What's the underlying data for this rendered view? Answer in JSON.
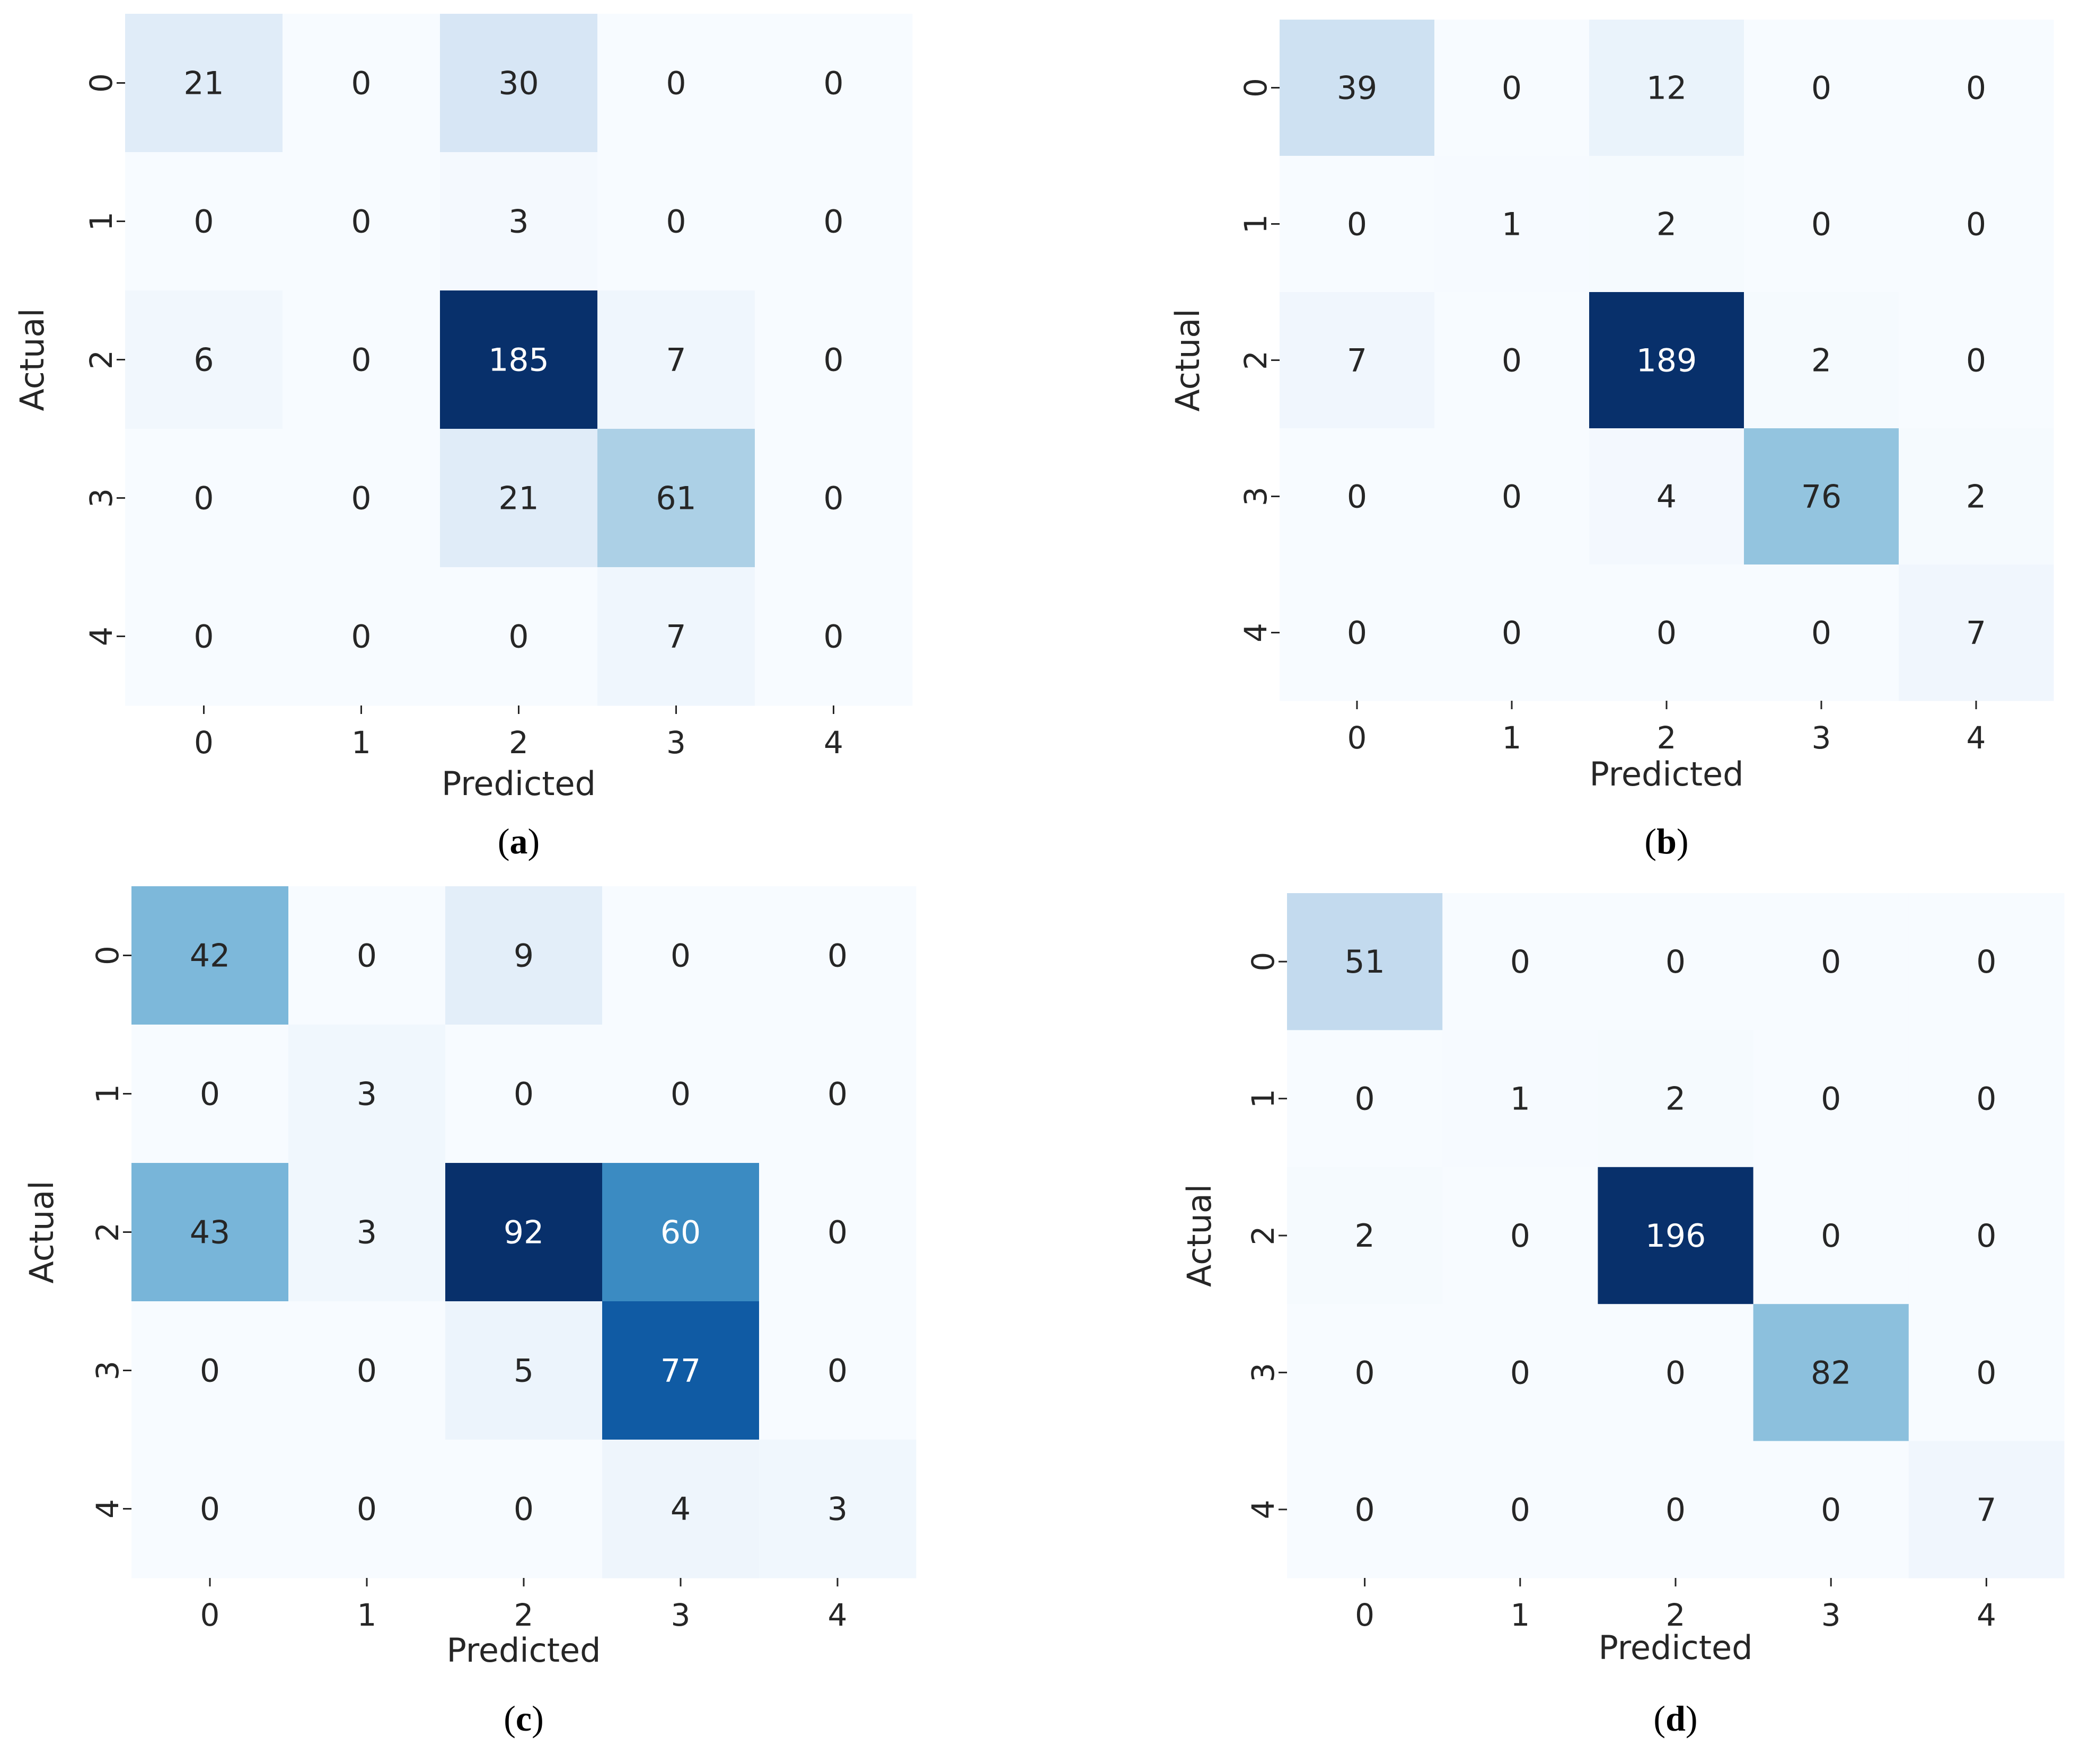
{
  "chart_data": [
    {
      "type": "heatmap",
      "caption": "a",
      "xlabel": "Predicted",
      "ylabel": "Actual",
      "x_ticks": [
        "0",
        "1",
        "2",
        "3",
        "4"
      ],
      "y_ticks": [
        "0",
        "1",
        "2",
        "3",
        "4"
      ],
      "colormap": "Blues",
      "matrix": [
        [
          21,
          0,
          30,
          0,
          0
        ],
        [
          0,
          0,
          3,
          0,
          0
        ],
        [
          6,
          0,
          185,
          7,
          0
        ],
        [
          0,
          0,
          21,
          61,
          0
        ],
        [
          0,
          0,
          0,
          7,
          0
        ]
      ]
    },
    {
      "type": "heatmap",
      "caption": "b",
      "xlabel": "Predicted",
      "ylabel": "Actual",
      "x_ticks": [
        "0",
        "1",
        "2",
        "3",
        "4"
      ],
      "y_ticks": [
        "0",
        "1",
        "2",
        "3",
        "4"
      ],
      "colormap": "Blues",
      "matrix": [
        [
          39,
          0,
          12,
          0,
          0
        ],
        [
          0,
          1,
          2,
          0,
          0
        ],
        [
          7,
          0,
          189,
          2,
          0
        ],
        [
          0,
          0,
          4,
          76,
          2
        ],
        [
          0,
          0,
          0,
          0,
          7
        ]
      ]
    },
    {
      "type": "heatmap",
      "caption": "c",
      "xlabel": "Predicted",
      "ylabel": "Actual",
      "x_ticks": [
        "0",
        "1",
        "2",
        "3",
        "4"
      ],
      "y_ticks": [
        "0",
        "1",
        "2",
        "3",
        "4"
      ],
      "colormap": "Blues",
      "matrix": [
        [
          42,
          0,
          9,
          0,
          0
        ],
        [
          0,
          3,
          0,
          0,
          0
        ],
        [
          43,
          3,
          92,
          60,
          0
        ],
        [
          0,
          0,
          5,
          77,
          0
        ],
        [
          0,
          0,
          0,
          4,
          3
        ]
      ]
    },
    {
      "type": "heatmap",
      "caption": "d",
      "xlabel": "Predicted",
      "ylabel": "Actual",
      "x_ticks": [
        "0",
        "1",
        "2",
        "3",
        "4"
      ],
      "y_ticks": [
        "0",
        "1",
        "2",
        "3",
        "4"
      ],
      "colormap": "Blues",
      "matrix": [
        [
          51,
          0,
          0,
          0,
          0
        ],
        [
          0,
          1,
          2,
          0,
          0
        ],
        [
          2,
          0,
          196,
          0,
          0
        ],
        [
          0,
          0,
          0,
          82,
          0
        ],
        [
          0,
          0,
          0,
          0,
          7
        ]
      ]
    }
  ]
}
